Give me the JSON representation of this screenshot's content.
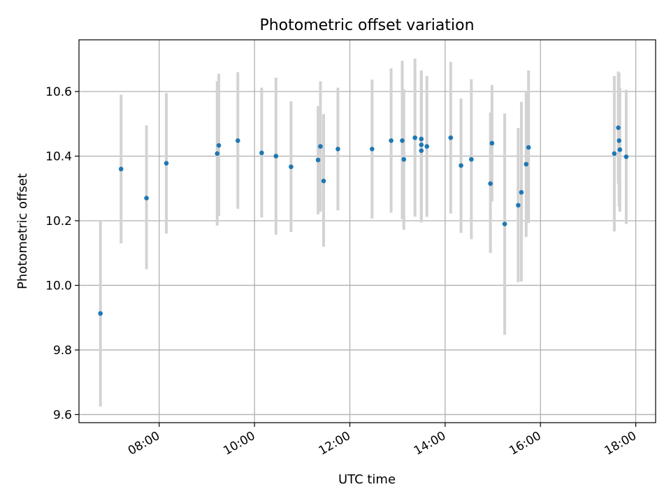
{
  "chart_data": {
    "type": "scatter",
    "title": "Photometric offset variation",
    "xlabel": "UTC time",
    "ylabel": "Photometric offset",
    "x_axis_kind": "time",
    "xlim": [
      "06:19",
      "18:25"
    ],
    "ylim": [
      9.575,
      10.76
    ],
    "x_ticks": [
      "08:00",
      "10:00",
      "12:00",
      "14:00",
      "16:00",
      "18:00"
    ],
    "y_ticks": [
      "9.6",
      "9.8",
      "10.0",
      "10.2",
      "10.4",
      "10.6"
    ],
    "grid": true,
    "colors": {
      "point": "#1f77b4",
      "errorbar": "#d3d3d3",
      "grid": "#b0b0b0"
    },
    "series": [
      {
        "points": [
          {
            "x": "06:46",
            "y": 9.913,
            "ylo": 9.625,
            "yhi": 10.2
          },
          {
            "x": "07:12",
            "y": 10.36,
            "ylo": 10.13,
            "yhi": 10.59
          },
          {
            "x": "07:44",
            "y": 10.27,
            "ylo": 10.05,
            "yhi": 10.495
          },
          {
            "x": "08:09",
            "y": 10.378,
            "ylo": 10.16,
            "yhi": 10.595
          },
          {
            "x": "09:13",
            "y": 10.408,
            "ylo": 10.185,
            "yhi": 10.632
          },
          {
            "x": "09:15",
            "y": 10.433,
            "ylo": 10.215,
            "yhi": 10.655
          },
          {
            "x": "09:39",
            "y": 10.448,
            "ylo": 10.237,
            "yhi": 10.66
          },
          {
            "x": "10:09",
            "y": 10.41,
            "ylo": 10.21,
            "yhi": 10.612
          },
          {
            "x": "10:27",
            "y": 10.4,
            "ylo": 10.157,
            "yhi": 10.643
          },
          {
            "x": "10:46",
            "y": 10.367,
            "ylo": 10.165,
            "yhi": 10.57
          },
          {
            "x": "11:20",
            "y": 10.388,
            "ylo": 10.22,
            "yhi": 10.555
          },
          {
            "x": "11:23",
            "y": 10.43,
            "ylo": 10.228,
            "yhi": 10.632
          },
          {
            "x": "11:27",
            "y": 10.323,
            "ylo": 10.12,
            "yhi": 10.53
          },
          {
            "x": "11:45",
            "y": 10.422,
            "ylo": 10.232,
            "yhi": 10.612
          },
          {
            "x": "12:28",
            "y": 10.422,
            "ylo": 10.207,
            "yhi": 10.637
          },
          {
            "x": "12:52",
            "y": 10.448,
            "ylo": 10.225,
            "yhi": 10.672
          },
          {
            "x": "13:06",
            "y": 10.448,
            "ylo": 10.205,
            "yhi": 10.695
          },
          {
            "x": "13:08",
            "y": 10.39,
            "ylo": 10.172,
            "yhi": 10.607
          },
          {
            "x": "13:22",
            "y": 10.457,
            "ylo": 10.213,
            "yhi": 10.702
          },
          {
            "x": "13:30",
            "y": 10.453,
            "ylo": 10.247,
            "yhi": 10.66
          },
          {
            "x": "13:30",
            "y": 10.435,
            "ylo": 10.205,
            "yhi": 10.665
          },
          {
            "x": "13:30",
            "y": 10.417,
            "ylo": 10.195,
            "yhi": 10.64
          },
          {
            "x": "13:37",
            "y": 10.43,
            "ylo": 10.212,
            "yhi": 10.648
          },
          {
            "x": "14:07",
            "y": 10.457,
            "ylo": 10.222,
            "yhi": 10.692
          },
          {
            "x": "14:20",
            "y": 10.371,
            "ylo": 10.162,
            "yhi": 10.578
          },
          {
            "x": "14:33",
            "y": 10.39,
            "ylo": 10.143,
            "yhi": 10.638
          },
          {
            "x": "14:57",
            "y": 10.315,
            "ylo": 10.1,
            "yhi": 10.535
          },
          {
            "x": "14:59",
            "y": 10.44,
            "ylo": 10.26,
            "yhi": 10.62
          },
          {
            "x": "15:15",
            "y": 10.19,
            "ylo": 9.847,
            "yhi": 10.532
          },
          {
            "x": "15:32",
            "y": 10.248,
            "ylo": 10.01,
            "yhi": 10.487
          },
          {
            "x": "15:36",
            "y": 10.288,
            "ylo": 10.012,
            "yhi": 10.568
          },
          {
            "x": "15:42",
            "y": 10.375,
            "ylo": 10.15,
            "yhi": 10.6
          },
          {
            "x": "15:45",
            "y": 10.427,
            "ylo": 10.193,
            "yhi": 10.665
          },
          {
            "x": "17:33",
            "y": 10.408,
            "ylo": 10.167,
            "yhi": 10.648
          },
          {
            "x": "17:38",
            "y": 10.488,
            "ylo": 10.315,
            "yhi": 10.662
          },
          {
            "x": "17:39",
            "y": 10.448,
            "ylo": 10.243,
            "yhi": 10.657
          },
          {
            "x": "17:40",
            "y": 10.42,
            "ylo": 10.228,
            "yhi": 10.612
          },
          {
            "x": "17:48",
            "y": 10.398,
            "ylo": 10.19,
            "yhi": 10.605
          }
        ]
      }
    ]
  }
}
